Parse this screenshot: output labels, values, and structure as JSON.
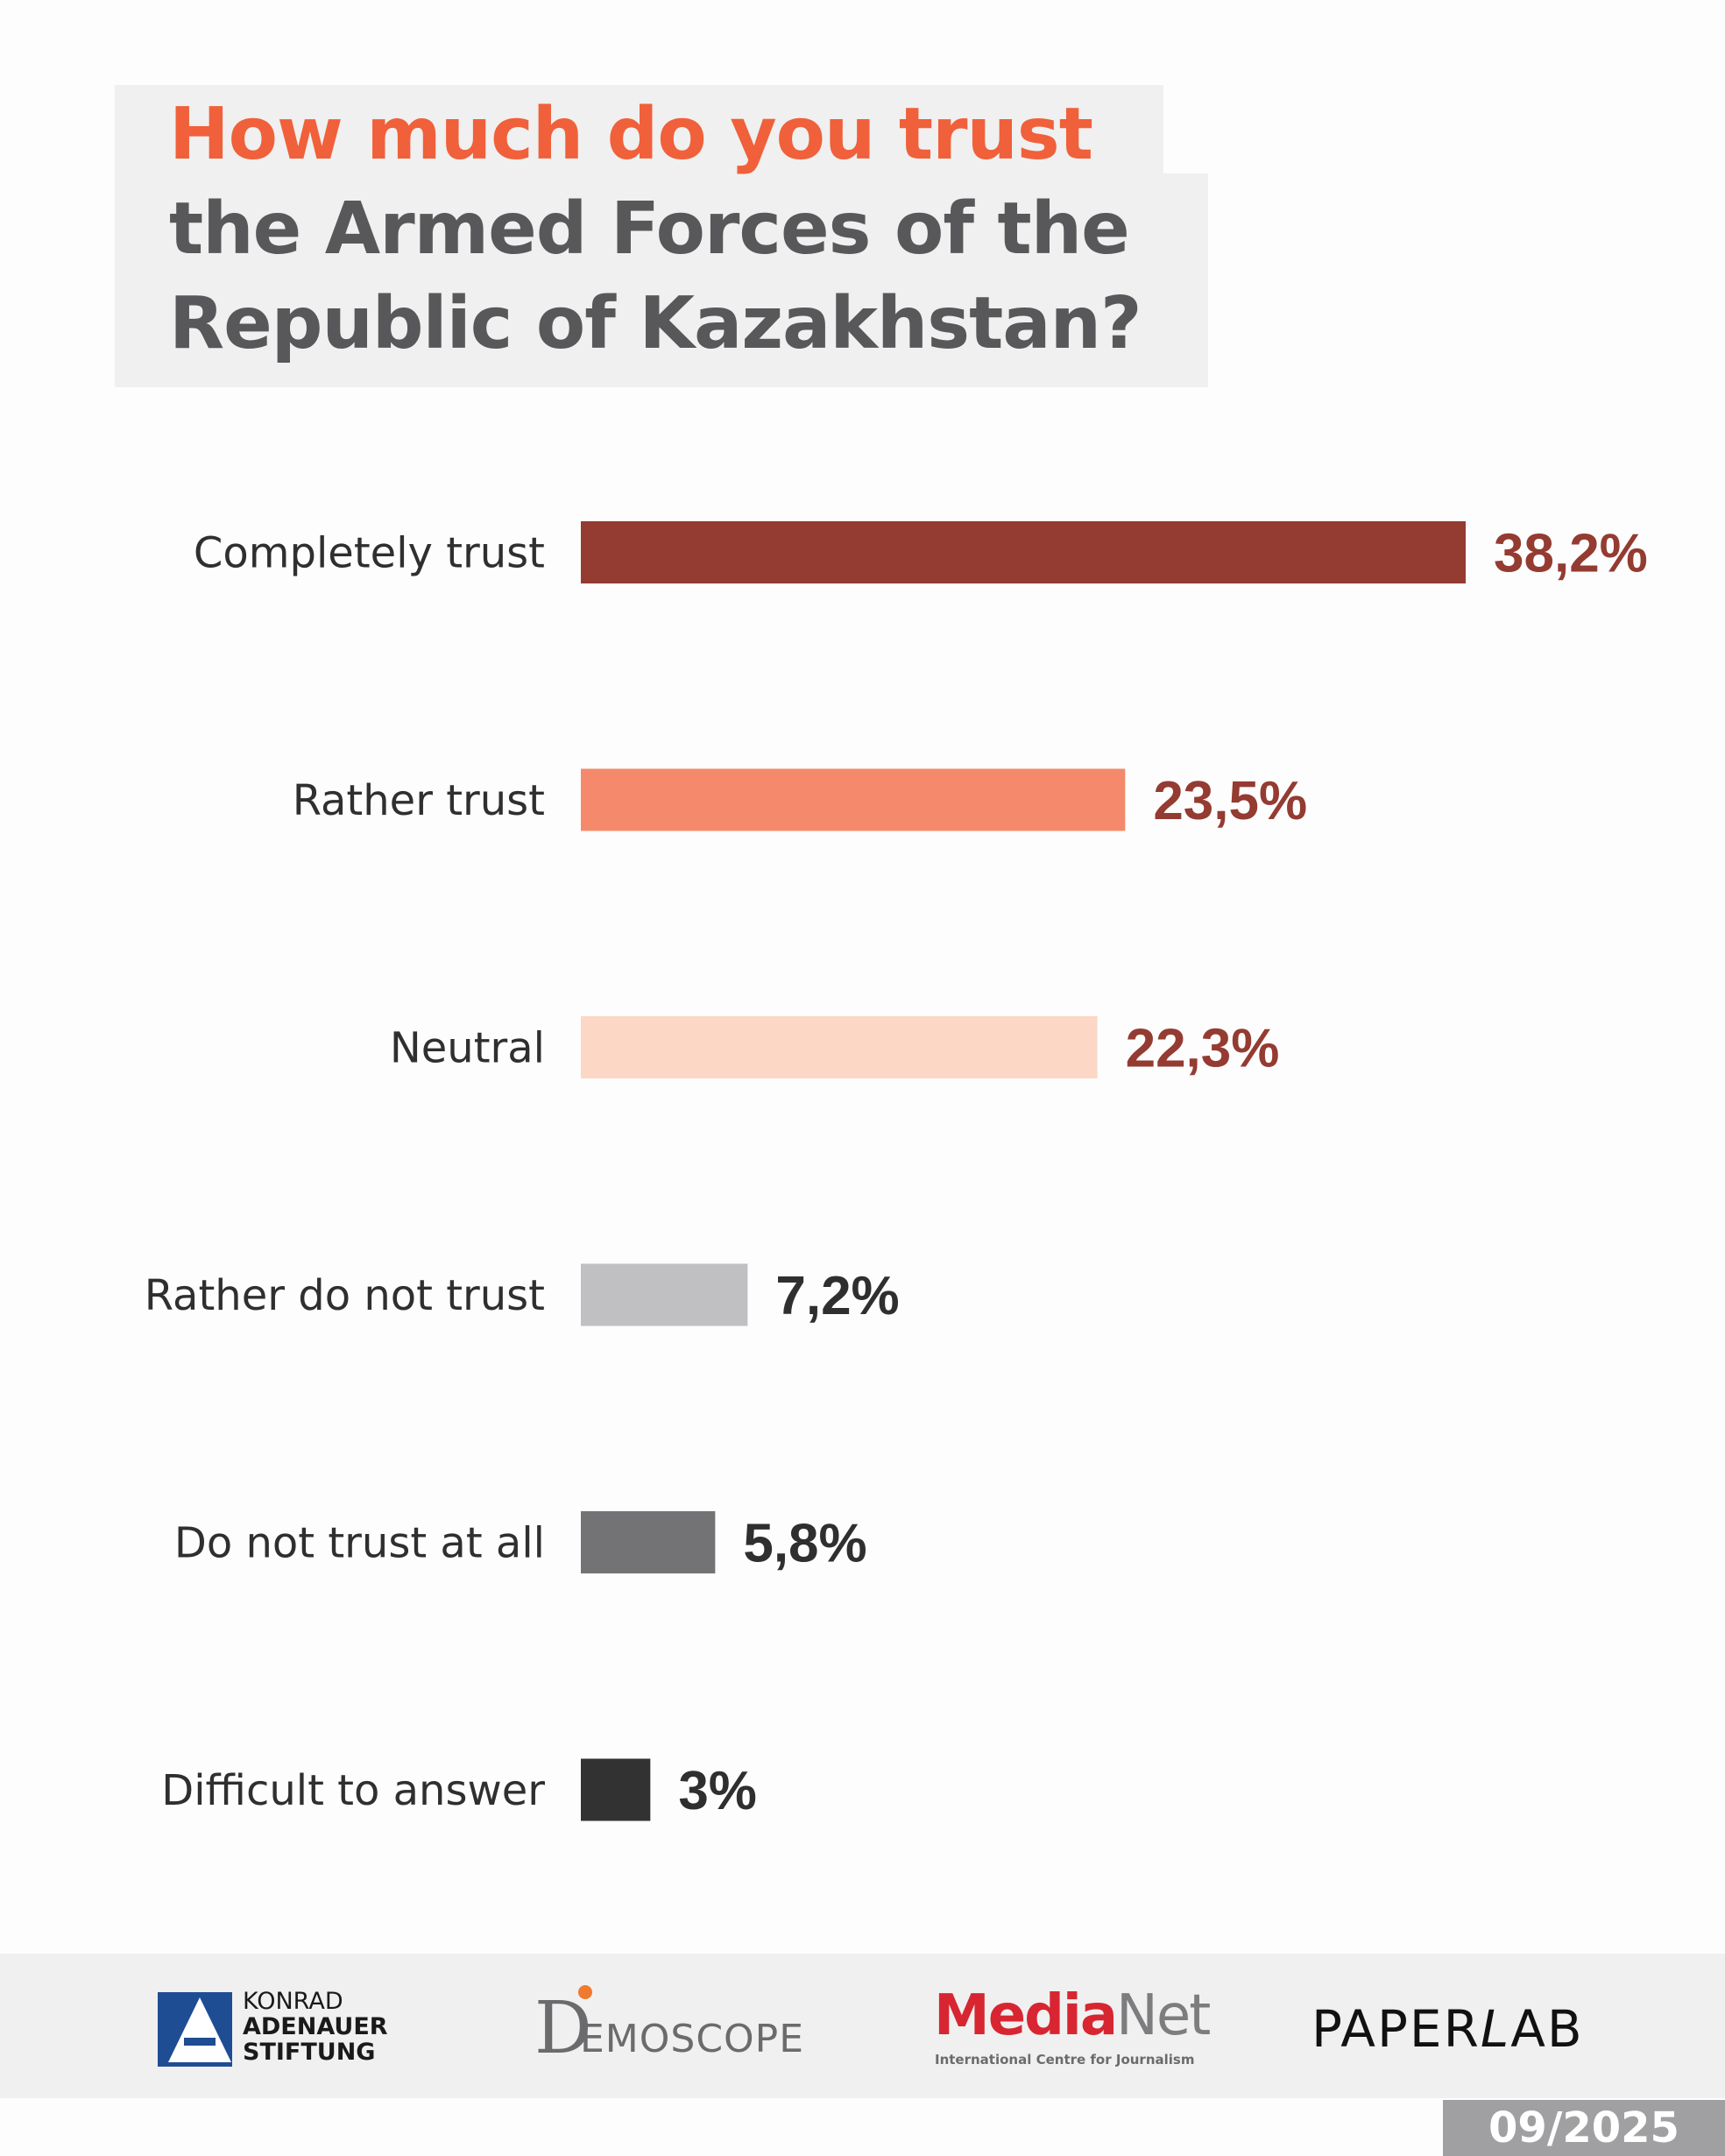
{
  "title": {
    "line1": "How much do you trust",
    "line2": "the Armed Forces of the",
    "line3": "Republic of Kazakhstan?"
  },
  "chart_data": {
    "type": "bar",
    "orientation": "horizontal",
    "categories": [
      "Completely trust",
      "Rather trust",
      "Neutral",
      "Rather do not trust",
      "Do not trust at all",
      "Difficult to answer"
    ],
    "values": [
      38.2,
      23.5,
      22.3,
      7.2,
      5.8,
      3
    ],
    "value_labels": [
      "38,2%",
      "23,5%",
      "22,3%",
      "7,2%",
      "5,8%",
      "3%"
    ],
    "bar_colors": [
      "#943b32",
      "#f48a6b",
      "#fcd7c6",
      "#c0c0c2",
      "#737376",
      "#333233"
    ],
    "label_colors": [
      "#943b32",
      "#943b32",
      "#943b32",
      "#2f2f30",
      "#2f2f30",
      "#2f2f30"
    ],
    "xlim": [
      0,
      38.2
    ],
    "grid": false,
    "legend": "none"
  },
  "footer": {
    "kas": {
      "line1": "KONRAD",
      "line2": "ADENAUER",
      "line3": "STIFTUNG"
    },
    "demoscope": {
      "first": "D",
      "rest": "EMOSCOPE"
    },
    "medianet": {
      "media": "Media",
      "net": "Net",
      "subtitle": "International Centre for Journalism"
    },
    "paperlab": {
      "paper": "PAPER",
      "l": "L",
      "ab": "AB"
    },
    "date": "09/2025"
  }
}
